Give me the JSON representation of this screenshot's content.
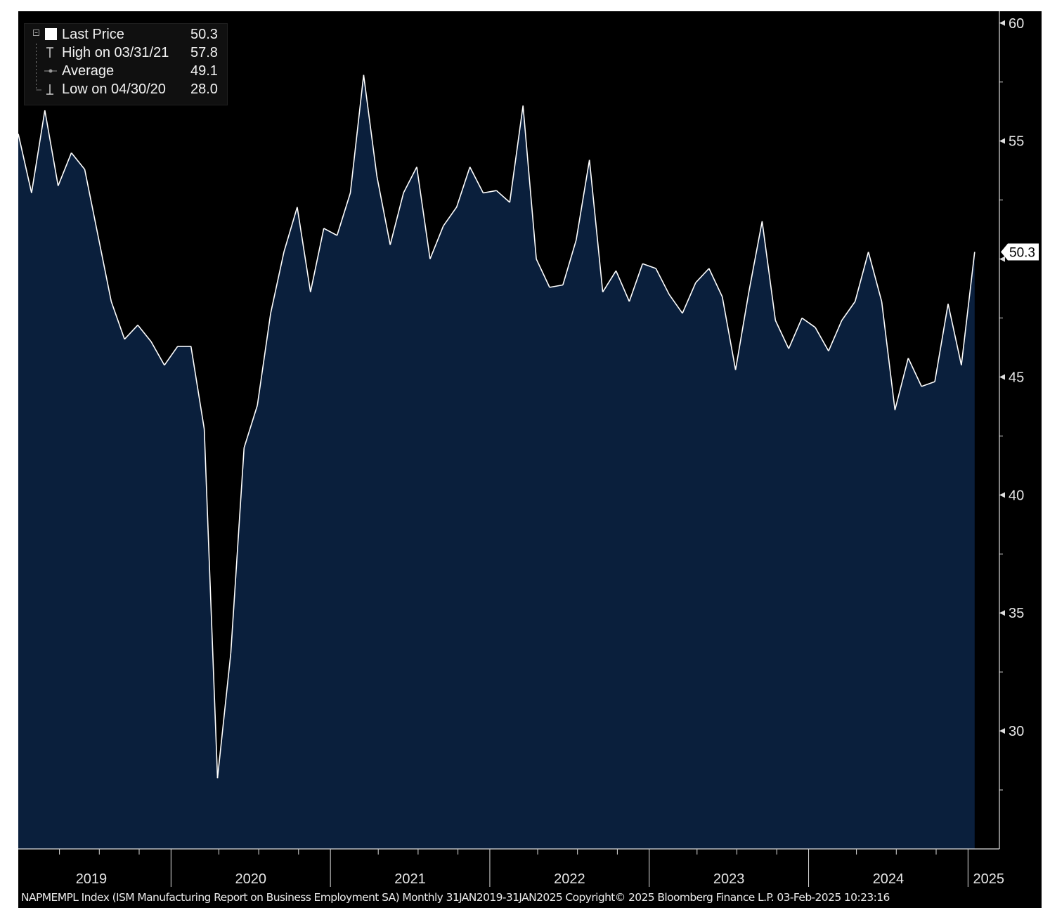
{
  "legend": {
    "last_price": {
      "label": "Last Price",
      "value": "50.3"
    },
    "high": {
      "label": "High on 03/31/21",
      "value": "57.8"
    },
    "average": {
      "label": "Average",
      "value": "49.1"
    },
    "low": {
      "label": "Low on 04/30/20",
      "value": "28.0"
    }
  },
  "last_price_tag": "50.3",
  "footer": "NAPMEMPL Index (ISM Manufacturing Report on Business Employment SA) Monthly 31JAN2019-31JAN2025 Copyright© 2025 Bloomberg Finance L.P. 03-Feb-2025 10:23:16",
  "colors": {
    "background": "#000000",
    "area_fill": "#0a1f3c",
    "line": "#ffffff",
    "text": "#e6e6e6"
  },
  "chart_data": {
    "type": "area",
    "title": "",
    "xlabel": "",
    "ylabel": "",
    "ylim": [
      25.0,
      60.5
    ],
    "y_ticks": [
      30,
      35,
      40,
      45,
      50,
      55,
      60
    ],
    "y_tick_labels": [
      "30",
      "35",
      "40",
      "45",
      "",
      "55",
      "60"
    ],
    "x_tick_labels": [
      "2019",
      "2020",
      "2021",
      "2022",
      "2023",
      "2024",
      "2025"
    ],
    "y_axis_position": "right",
    "grid": false,
    "legend_position": "top-left",
    "series": [
      {
        "x": [
          "2019-01",
          "2019-02",
          "2019-03",
          "2019-04",
          "2019-05",
          "2019-06",
          "2019-07",
          "2019-08",
          "2019-09",
          "2019-10",
          "2019-11",
          "2019-12",
          "2020-01",
          "2020-02",
          "2020-03",
          "2020-04",
          "2020-05",
          "2020-06",
          "2020-07",
          "2020-08",
          "2020-09",
          "2020-10",
          "2020-11",
          "2020-12",
          "2021-01",
          "2021-02",
          "2021-03",
          "2021-04",
          "2021-05",
          "2021-06",
          "2021-07",
          "2021-08",
          "2021-09",
          "2021-10",
          "2021-11",
          "2021-12",
          "2022-01",
          "2022-02",
          "2022-03",
          "2022-04",
          "2022-05",
          "2022-06",
          "2022-07",
          "2022-08",
          "2022-09",
          "2022-10",
          "2022-11",
          "2022-12",
          "2023-01",
          "2023-02",
          "2023-03",
          "2023-04",
          "2023-05",
          "2023-06",
          "2023-07",
          "2023-08",
          "2023-09",
          "2023-10",
          "2023-11",
          "2023-12",
          "2024-01",
          "2024-02",
          "2024-03",
          "2024-04",
          "2024-05",
          "2024-06",
          "2024-07",
          "2024-08",
          "2024-09",
          "2024-10",
          "2024-11",
          "2024-12",
          "2025-01"
        ],
        "values": [
          55.3,
          52.8,
          56.3,
          53.1,
          54.5,
          53.8,
          51.0,
          48.2,
          46.6,
          47.2,
          46.5,
          45.5,
          46.3,
          46.3,
          42.8,
          28.0,
          33.3,
          42.0,
          43.8,
          47.7,
          50.3,
          52.2,
          48.6,
          51.3,
          51.0,
          52.8,
          57.8,
          53.5,
          50.6,
          52.8,
          53.9,
          50.0,
          51.4,
          52.2,
          53.9,
          52.8,
          52.9,
          52.4,
          56.5,
          50.0,
          48.8,
          48.9,
          50.8,
          54.2,
          48.6,
          49.5,
          48.2,
          49.8,
          49.6,
          48.5,
          47.7,
          49.0,
          49.6,
          48.4,
          45.3,
          48.6,
          51.6,
          47.4,
          46.2,
          47.5,
          47.1,
          46.1,
          47.4,
          48.2,
          50.3,
          48.2,
          43.6,
          45.8,
          44.6,
          44.8,
          48.1,
          45.5,
          50.3
        ]
      }
    ]
  }
}
